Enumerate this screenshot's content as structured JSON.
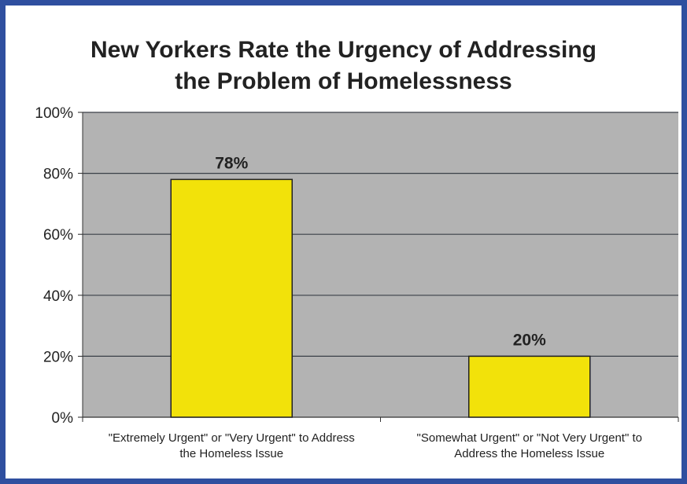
{
  "chart_data": {
    "type": "bar",
    "title_line1": "New Yorkers Rate the Urgency of Addressing",
    "title_line2": "the Problem of Homelessness",
    "categories": [
      [
        "\"Extremely Urgent\" or \"Very Urgent\" to Address",
        "the Homeless Issue"
      ],
      [
        "\"Somewhat Urgent\" or \"Not Very Urgent\" to",
        "Address the Homeless Issue"
      ]
    ],
    "values": [
      78,
      20
    ],
    "data_labels": [
      "78%",
      "20%"
    ],
    "ylim": [
      0,
      100
    ],
    "yticks": [
      0,
      20,
      40,
      60,
      80,
      100
    ],
    "ytick_labels": [
      "0%",
      "20%",
      "40%",
      "60%",
      "80%",
      "100%"
    ],
    "grid": true,
    "colors": {
      "bar": "#f2e20a",
      "bar_border": "#222222",
      "plot_bg": "#b3b3b3",
      "gridline": "#3a3f48",
      "frame": "#2f4f9f"
    }
  }
}
